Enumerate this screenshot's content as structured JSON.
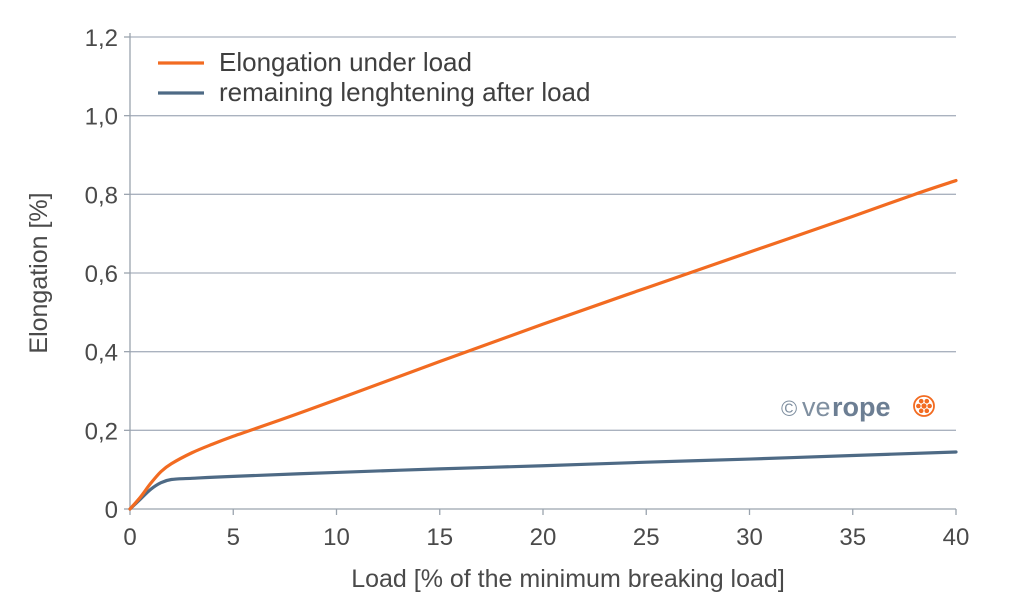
{
  "chart_data": {
    "type": "line",
    "title": "",
    "xlabel": "Load [% of the minimum breaking load]",
    "ylabel": "Elongation [%]",
    "xlim": [
      0,
      40
    ],
    "ylim": [
      0,
      1.2
    ],
    "x_ticks": [
      0,
      5,
      10,
      15,
      20,
      25,
      30,
      35,
      40
    ],
    "x_tick_labels": [
      "0",
      "5",
      "10",
      "15",
      "20",
      "25",
      "30",
      "35",
      "40"
    ],
    "y_ticks": [
      0,
      0.2,
      0.4,
      0.6,
      0.8,
      1.0,
      1.2
    ],
    "y_tick_labels": [
      "0",
      "0,2",
      "0,4",
      "0,6",
      "0,8",
      "1,0",
      "1,2"
    ],
    "grid": "horizontal",
    "legend_position": "top-left",
    "series": [
      {
        "name": "Elongation under load",
        "color": "#f26b21",
        "x": [
          0,
          0.5,
          1,
          1.5,
          2,
          3,
          4,
          5,
          6,
          8,
          10,
          15,
          20,
          25,
          30,
          35,
          38,
          40
        ],
        "y": [
          0,
          0.03,
          0.065,
          0.095,
          0.115,
          0.143,
          0.165,
          0.185,
          0.203,
          0.24,
          0.278,
          0.375,
          0.47,
          0.562,
          0.653,
          0.744,
          0.8,
          0.835
        ]
      },
      {
        "name": "remaining lenghtening after load",
        "color": "#4e6a85",
        "x": [
          0,
          0.5,
          1,
          1.5,
          2,
          3,
          5,
          10,
          15,
          20,
          25,
          30,
          35,
          40
        ],
        "y": [
          0,
          0.025,
          0.05,
          0.067,
          0.075,
          0.078,
          0.083,
          0.093,
          0.102,
          0.11,
          0.119,
          0.127,
          0.136,
          0.145
        ]
      }
    ]
  },
  "watermark": {
    "copyright_symbol": "©",
    "brand_light": "ve",
    "brand_bold": "rope",
    "color": "#f26b21"
  }
}
